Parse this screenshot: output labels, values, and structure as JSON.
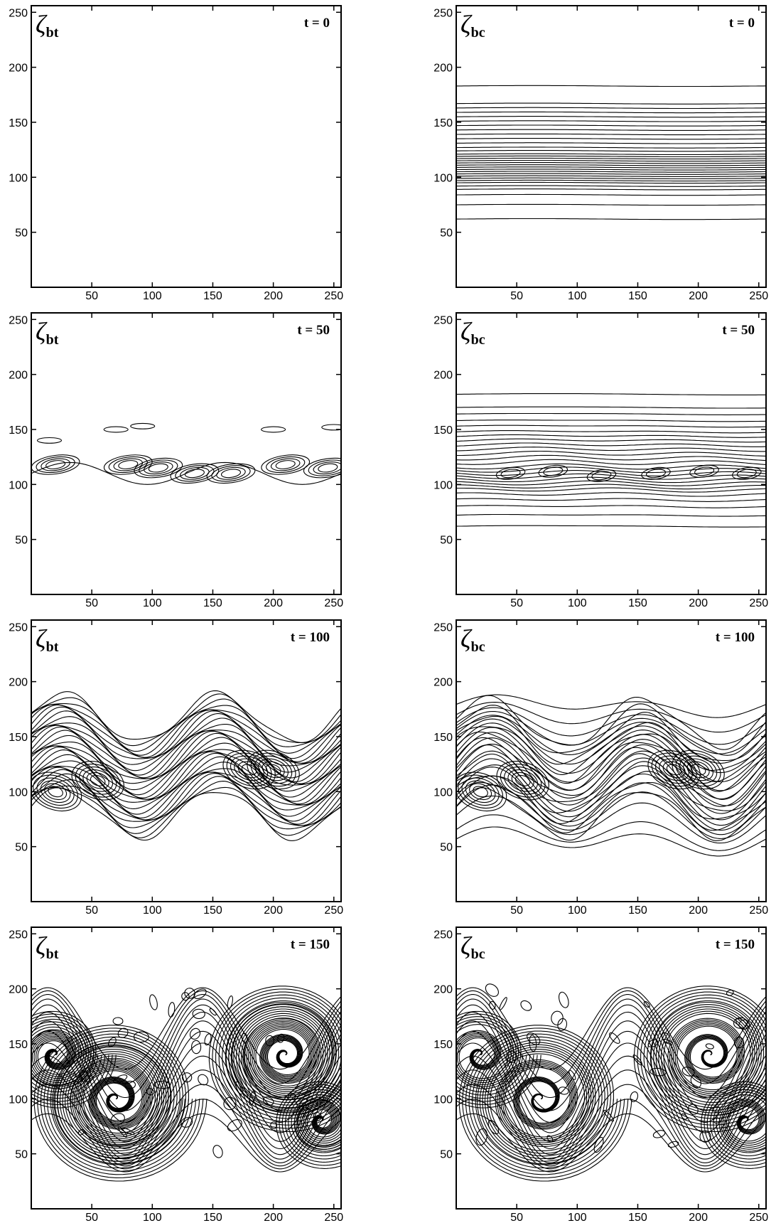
{
  "figure": {
    "rows": 4,
    "cols": 2
  },
  "chart_data": [
    {
      "type": "contour",
      "field_symbol": "ζ",
      "field_sub": "bt",
      "time_label": "t = 0",
      "xlim": [
        0,
        256
      ],
      "ylim": [
        0,
        256
      ],
      "xticks": [
        50,
        100,
        150,
        200,
        250
      ],
      "yticks": [
        50,
        100,
        150,
        200,
        250
      ],
      "contour_levels_y": []
    },
    {
      "type": "contour",
      "field_symbol": "ζ",
      "field_sub": "bc",
      "time_label": "t = 0",
      "xlim": [
        0,
        256
      ],
      "ylim": [
        0,
        256
      ],
      "xticks": [
        50,
        100,
        150,
        200,
        250
      ],
      "yticks": [
        50,
        100,
        150,
        200,
        250
      ],
      "contour_levels_y": [
        62,
        75,
        84,
        89,
        92,
        95,
        97,
        99,
        101,
        103,
        105,
        107,
        109,
        111,
        113,
        115,
        117,
        119,
        121,
        124,
        127,
        131,
        135,
        139,
        143,
        147,
        151,
        155,
        159,
        163,
        167,
        183
      ]
    },
    {
      "type": "contour",
      "field_symbol": "ζ",
      "field_sub": "bt",
      "time_label": "t = 50",
      "xlim": [
        0,
        256
      ],
      "ylim": [
        0,
        256
      ],
      "xticks": [
        50,
        100,
        150,
        200,
        250
      ],
      "yticks": [
        50,
        100,
        150,
        200,
        250
      ],
      "contour_levels_y": []
    },
    {
      "type": "contour",
      "field_symbol": "ζ",
      "field_sub": "bc",
      "time_label": "t = 50",
      "xlim": [
        0,
        256
      ],
      "ylim": [
        0,
        256
      ],
      "xticks": [
        50,
        100,
        150,
        200,
        250
      ],
      "yticks": [
        50,
        100,
        150,
        200,
        250
      ],
      "contour_levels_y": [
        62,
        72,
        80,
        86,
        91,
        95,
        98,
        101,
        104,
        107,
        110,
        113,
        116,
        120,
        124,
        128,
        132,
        136,
        140,
        144,
        148,
        153,
        158,
        164,
        170,
        182
      ]
    },
    {
      "type": "contour",
      "field_symbol": "ζ",
      "field_sub": "bt",
      "time_label": "t = 100",
      "xlim": [
        0,
        256
      ],
      "ylim": [
        0,
        256
      ],
      "xticks": [
        50,
        100,
        150,
        200,
        250
      ],
      "yticks": [
        50,
        100,
        150,
        200,
        250
      ],
      "contour_levels_y": []
    },
    {
      "type": "contour",
      "field_symbol": "ζ",
      "field_sub": "bc",
      "time_label": "t = 100",
      "xlim": [
        0,
        256
      ],
      "ylim": [
        0,
        256
      ],
      "xticks": [
        50,
        100,
        150,
        200,
        250
      ],
      "yticks": [
        50,
        100,
        150,
        200,
        250
      ],
      "contour_levels_y": [
        55,
        63,
        75,
        82,
        88,
        94,
        100,
        106,
        112,
        118,
        124,
        130,
        136,
        142,
        148,
        154,
        160,
        168,
        178
      ]
    },
    {
      "type": "contour",
      "field_symbol": "ζ",
      "field_sub": "bt",
      "time_label": "t = 150",
      "xlim": [
        0,
        256
      ],
      "ylim": [
        0,
        256
      ],
      "xticks": [
        50,
        100,
        150,
        200,
        250
      ],
      "yticks": [
        50,
        100,
        150,
        200,
        250
      ],
      "contour_levels_y": []
    },
    {
      "type": "contour",
      "field_symbol": "ζ",
      "field_sub": "bc",
      "time_label": "t = 150",
      "xlim": [
        0,
        256
      ],
      "ylim": [
        0,
        256
      ],
      "xticks": [
        50,
        100,
        150,
        200,
        250
      ],
      "yticks": [
        50,
        100,
        150,
        200,
        250
      ],
      "contour_levels_y": []
    }
  ]
}
